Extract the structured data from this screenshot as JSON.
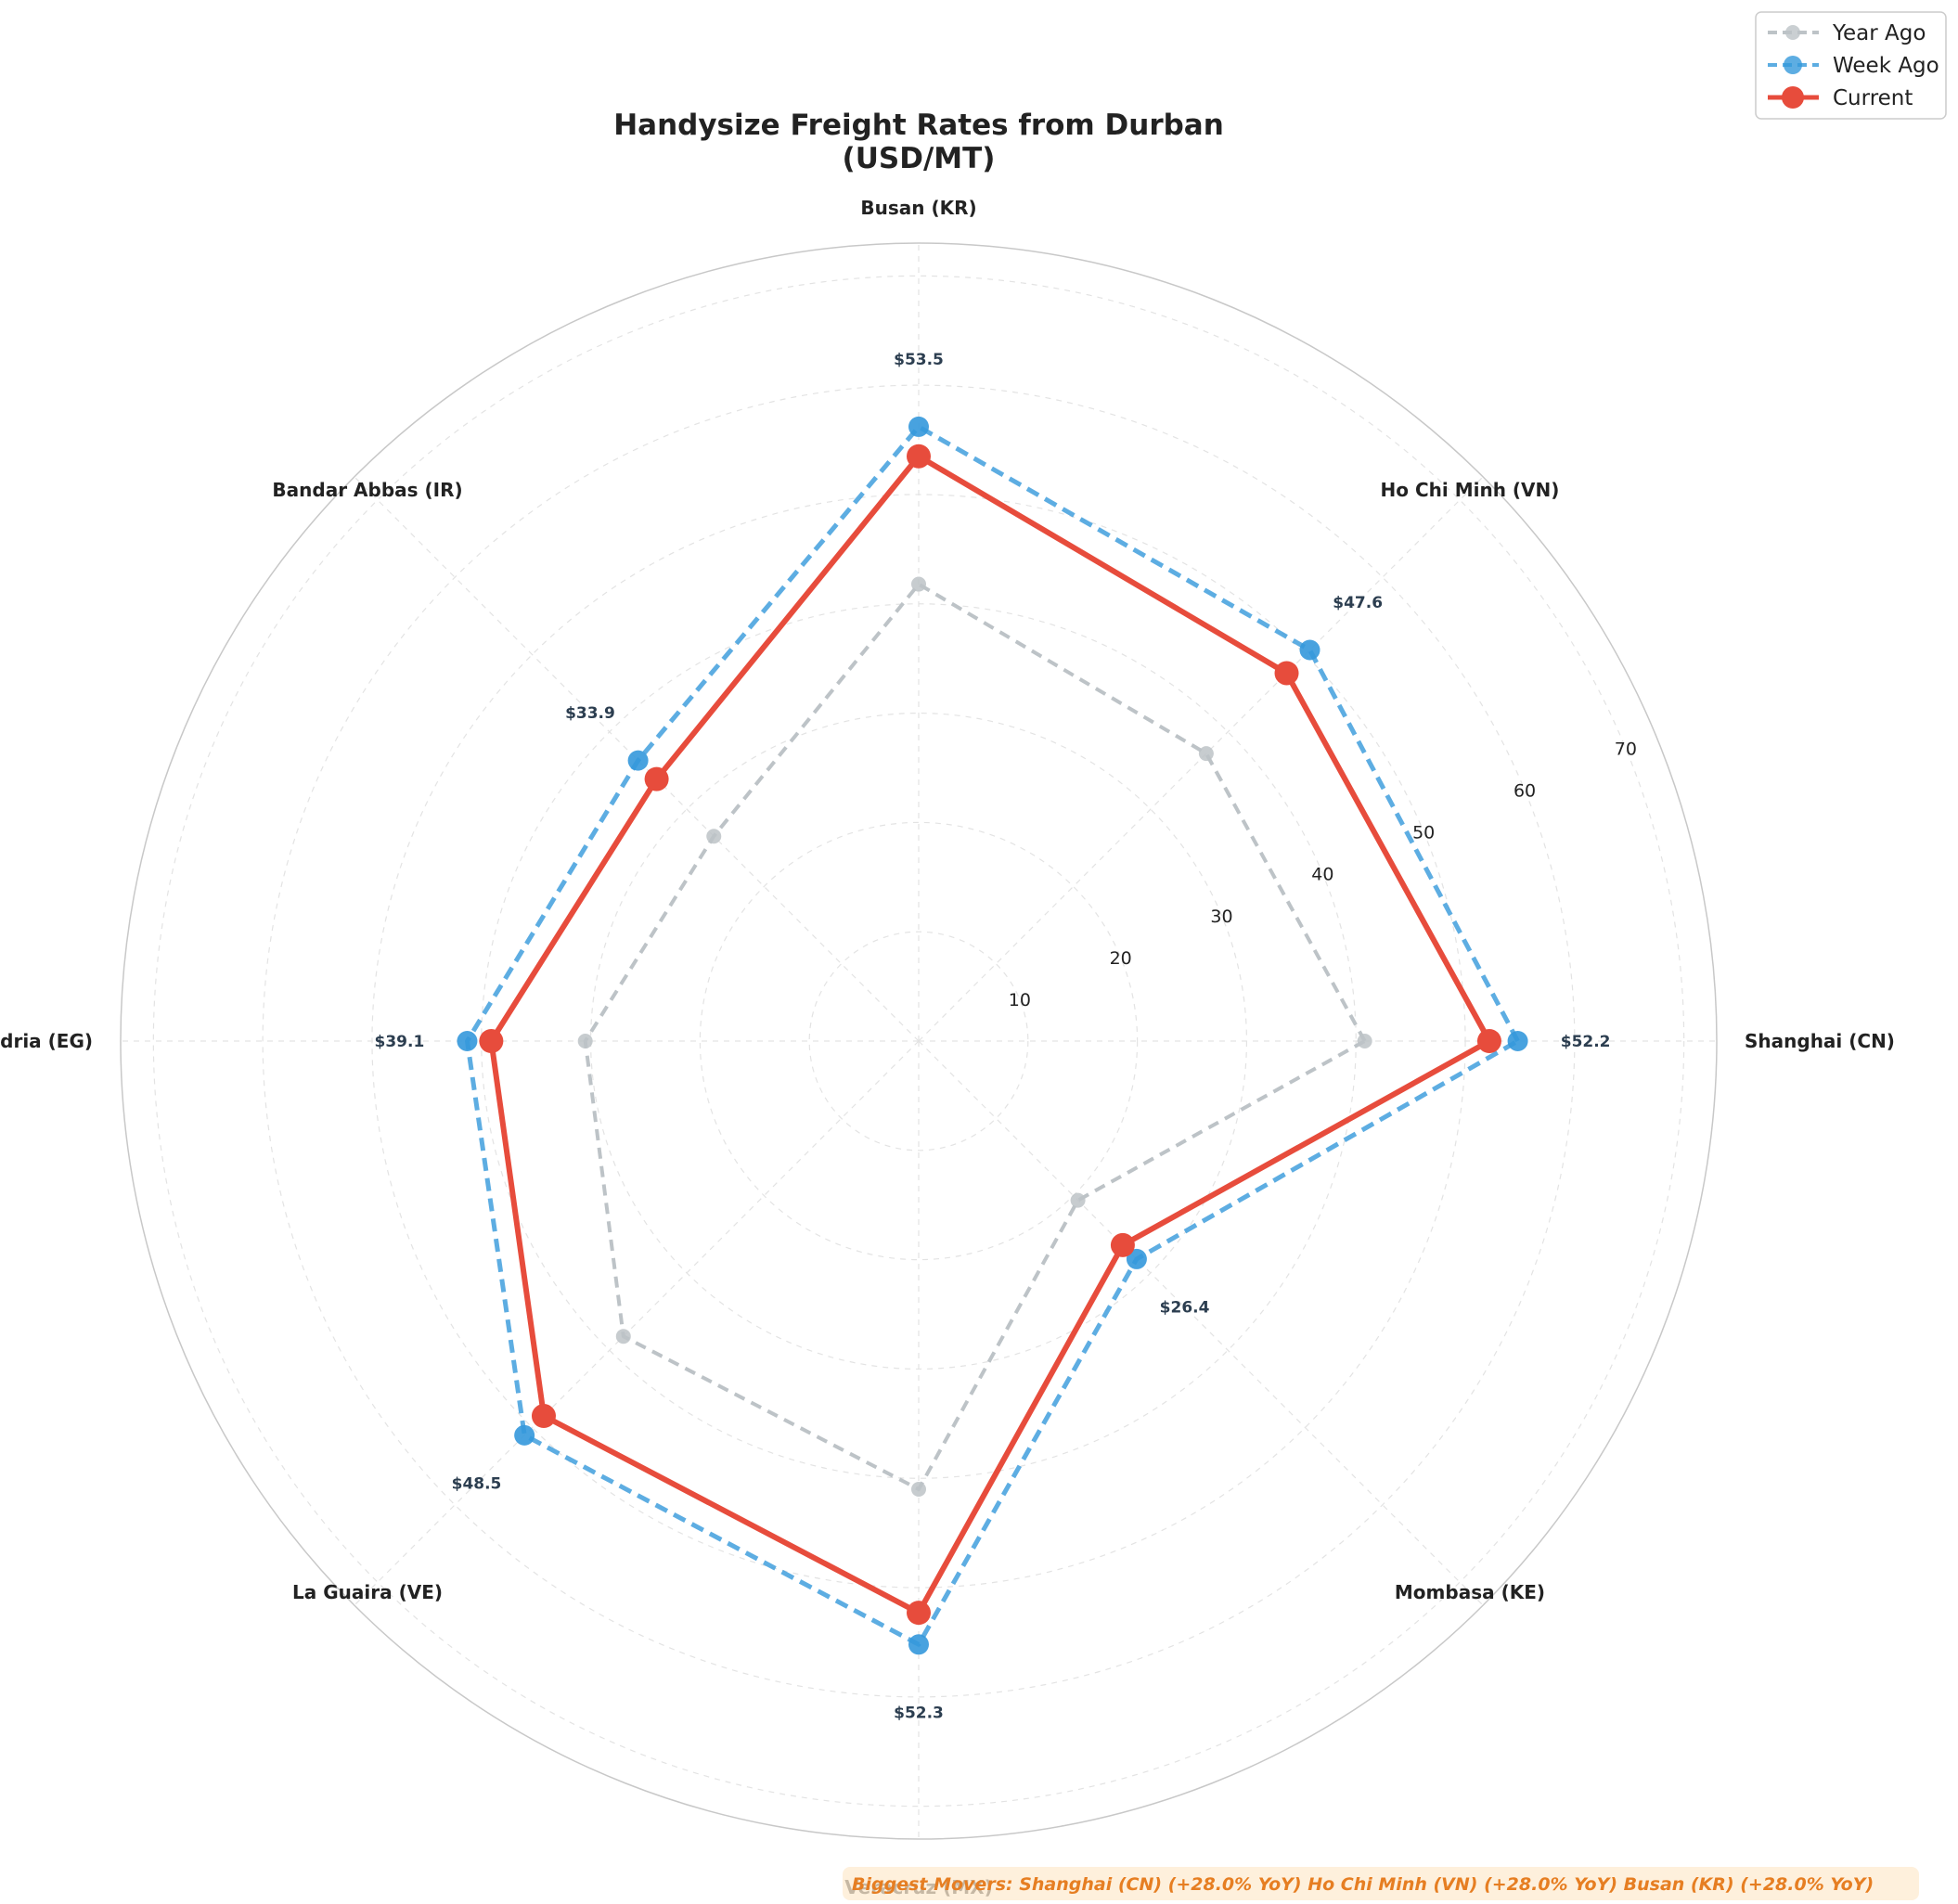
{
  "chart_data": {
    "type": "radar",
    "title_lines": [
      "Handysize Freight Rates from Durban",
      "(USD/MT)"
    ],
    "categories": [
      "Shanghai (CN)",
      "Ho Chi Minh (VN)",
      "Busan (KR)",
      "Bandar Abbas (IR)",
      "Alexandria (EG)",
      "La Guaira (VE)",
      "Veracruz (MX)",
      "Mombasa (KE)"
    ],
    "r_ticks": [
      10,
      20,
      30,
      40,
      50,
      60,
      70
    ],
    "r_max": 73,
    "grid": true,
    "legend_position": "top-right",
    "series": [
      {
        "name": "Year Ago",
        "color": "#bdc3c7",
        "style": "dashed",
        "values": [
          40.8,
          37.2,
          41.8,
          26.5,
          30.5,
          38.2,
          41.0,
          20.6
        ]
      },
      {
        "name": "Week Ago",
        "color": "#3498db",
        "style": "dashed",
        "values": [
          54.8,
          50.6,
          56.2,
          36.3,
          41.3,
          51.0,
          55.2,
          28.2
        ]
      },
      {
        "name": "Current",
        "color": "#e74c3c",
        "style": "solid",
        "values": [
          52.2,
          47.6,
          53.5,
          33.9,
          39.1,
          48.5,
          52.3,
          26.4
        ]
      }
    ],
    "value_labels": [
      "$52.2",
      "$47.6",
      "$53.5",
      "$33.9",
      "$39.1",
      "$48.5",
      "$52.3",
      "$26.4"
    ],
    "annotation": "Biggest Movers: Shanghai (CN) (+28.0% YoY)  Ho Chi Minh (VN) (+28.0% YoY)  Busan (KR) (+28.0% YoY)"
  }
}
